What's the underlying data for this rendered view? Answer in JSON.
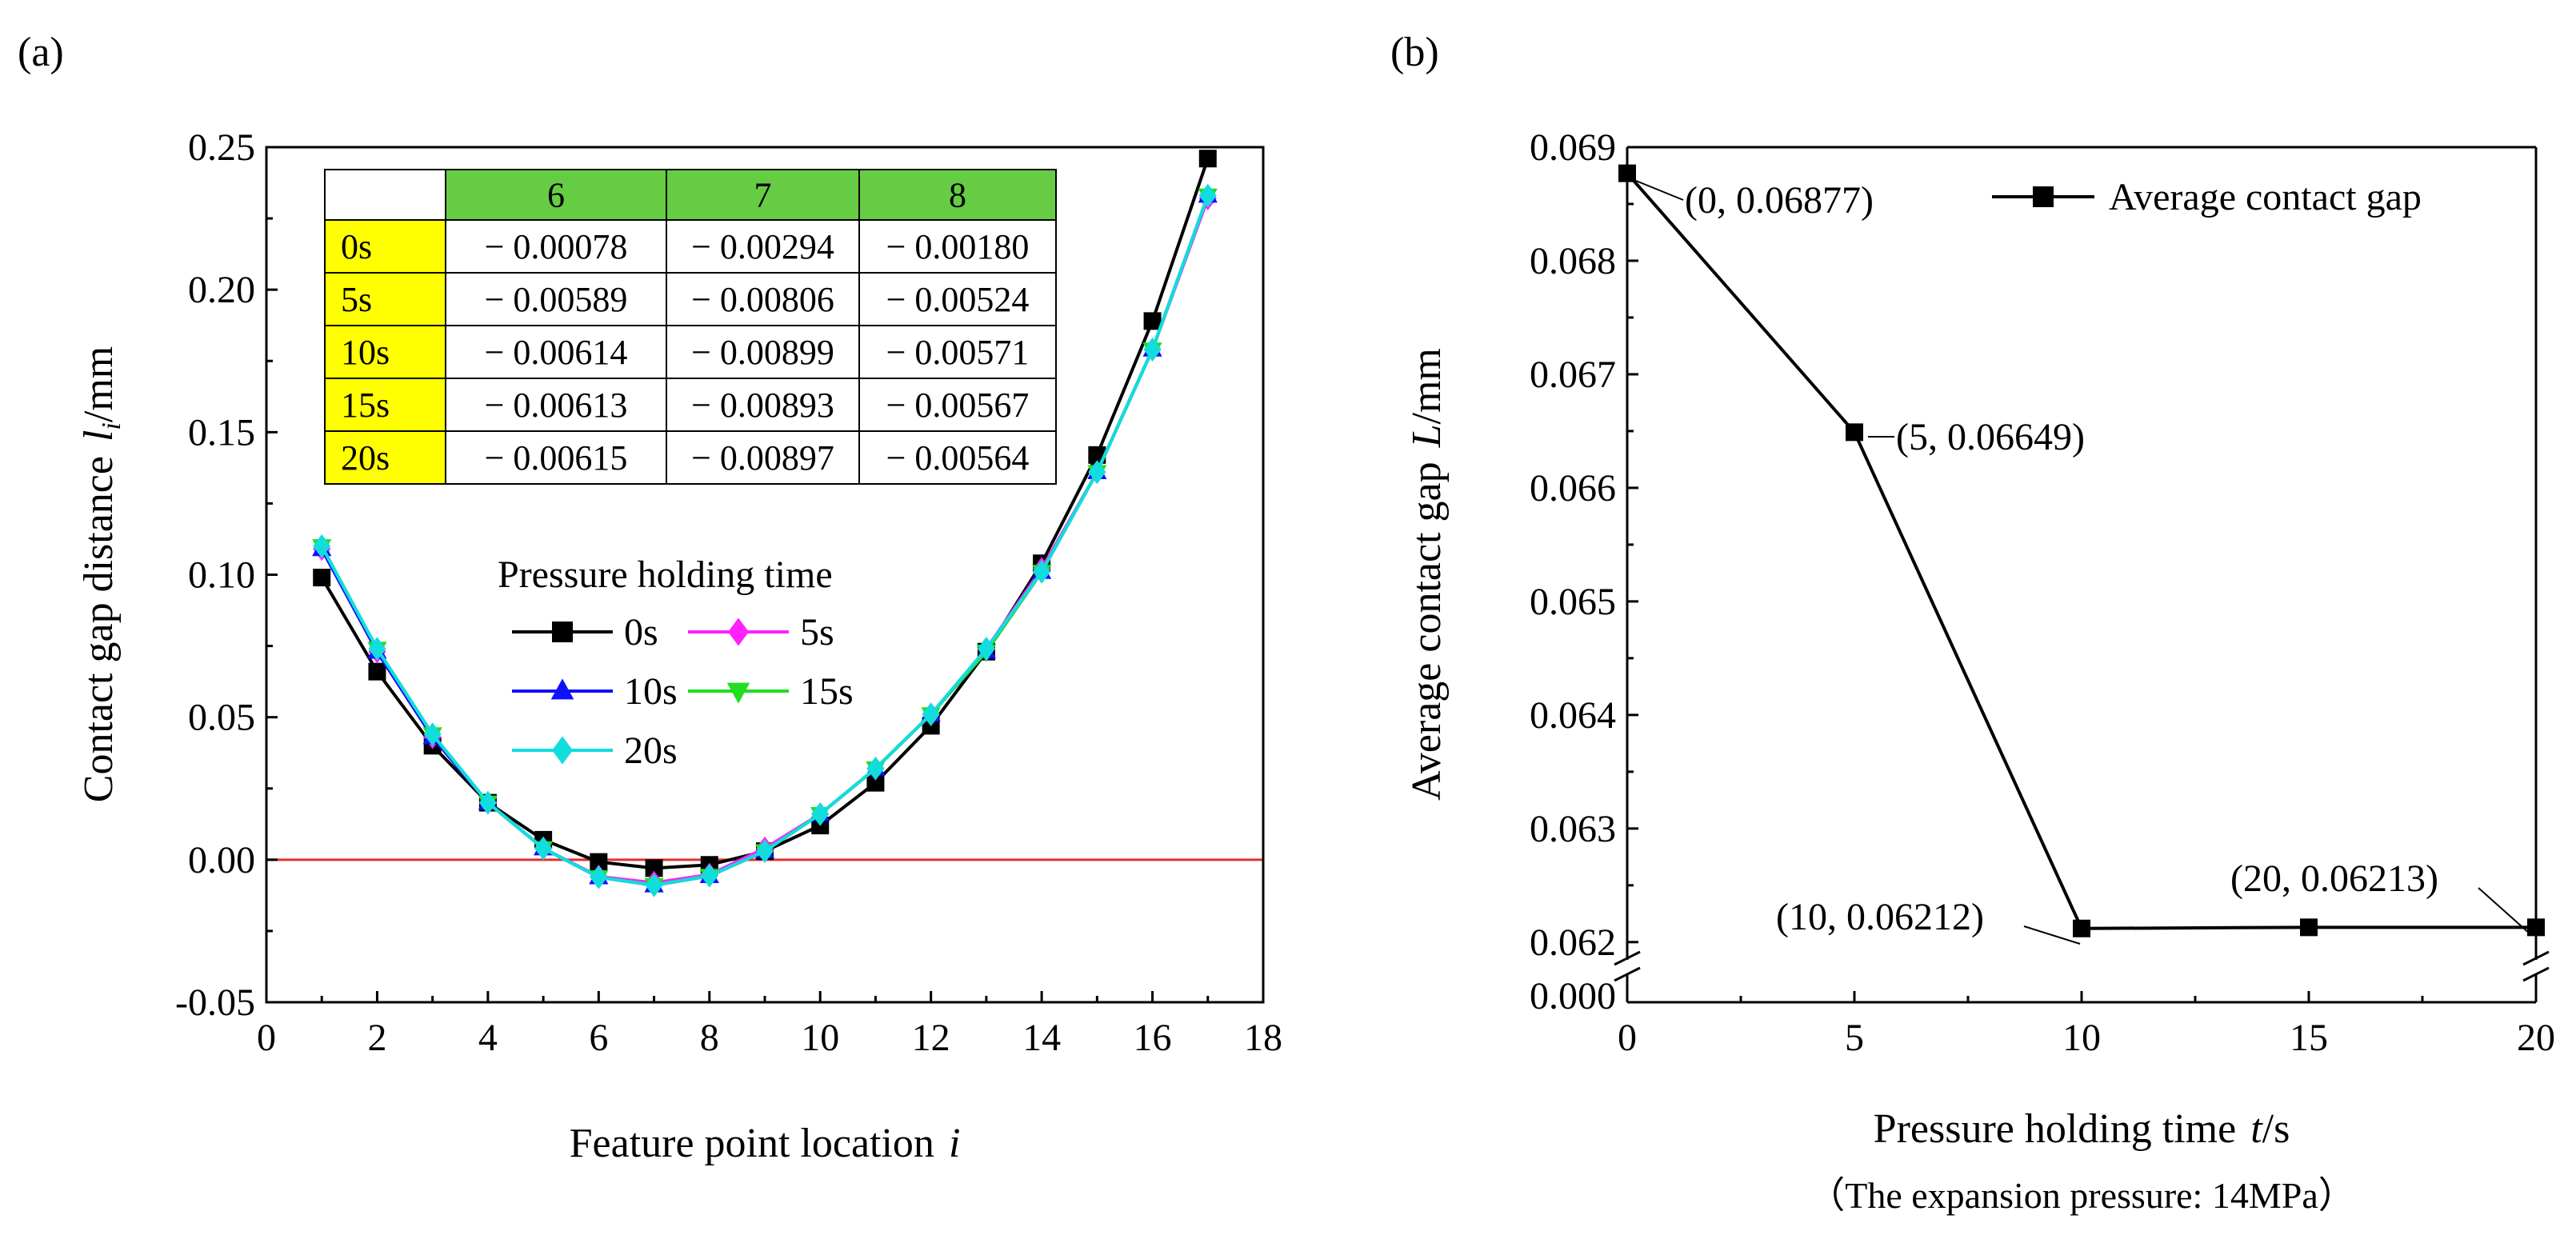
{
  "chart_data": [
    {
      "panel_label": "(a)",
      "type": "line",
      "xlabel_text": "Feature point location",
      "xlabel_var": "i",
      "ylabel_text": "Contact gap distance",
      "ylabel_var": "l",
      "ylabel_sub": "i",
      "ylabel_unit": "/mm",
      "xlim": [
        0,
        18
      ],
      "ylim": [
        -0.05,
        0.25
      ],
      "xticks": [
        0,
        2,
        4,
        6,
        8,
        10,
        12,
        14,
        16,
        18
      ],
      "xtick_labels": [
        "0",
        "2",
        "4",
        "6",
        "8",
        "10",
        "12",
        "14",
        "16",
        "18"
      ],
      "yticks": [
        -0.05,
        0.0,
        0.05,
        0.1,
        0.15,
        0.2,
        0.25
      ],
      "ytick_labels": [
        "-0.05",
        "0.00",
        "0.05",
        "0.10",
        "0.15",
        "0.20",
        "0.25"
      ],
      "reference_line": {
        "y": 0,
        "color": "#e03030"
      },
      "x": [
        1,
        2,
        3,
        4,
        5,
        6,
        7,
        8,
        9,
        10,
        11,
        12,
        13,
        14,
        15,
        16,
        17
      ],
      "series": [
        {
          "name": "0s",
          "color": "#000000",
          "marker": "square",
          "values": [
            0.099,
            0.066,
            0.04,
            0.02,
            0.007,
            -0.00078,
            -0.00294,
            -0.0018,
            0.003,
            0.012,
            0.027,
            0.047,
            0.073,
            0.104,
            0.142,
            0.189,
            0.246
          ]
        },
        {
          "name": "5s",
          "color": "#ff22ff",
          "marker": "diamond",
          "values": [
            0.109,
            0.073,
            0.043,
            0.02,
            0.004,
            -0.00589,
            -0.00806,
            -0.00524,
            0.004,
            0.016,
            0.032,
            0.051,
            0.074,
            0.102,
            0.136,
            0.179,
            0.232
          ]
        },
        {
          "name": "10s",
          "color": "#1010ff",
          "marker": "triangle-up",
          "values": [
            0.109,
            0.073,
            0.043,
            0.02,
            0.004,
            -0.00614,
            -0.00899,
            -0.00571,
            0.003,
            0.016,
            0.032,
            0.051,
            0.073,
            0.101,
            0.136,
            0.179,
            0.233
          ]
        },
        {
          "name": "15s",
          "color": "#22dd22",
          "marker": "triangle-down",
          "values": [
            0.11,
            0.074,
            0.044,
            0.02,
            0.004,
            -0.00613,
            -0.00893,
            -0.00567,
            0.003,
            0.016,
            0.032,
            0.051,
            0.073,
            0.101,
            0.136,
            0.179,
            0.233
          ]
        },
        {
          "name": "20s",
          "color": "#11dddd",
          "marker": "diamond",
          "values": [
            0.11,
            0.074,
            0.044,
            0.02,
            0.004,
            -0.00615,
            -0.00897,
            -0.00564,
            0.003,
            0.016,
            0.032,
            0.051,
            0.074,
            0.101,
            0.136,
            0.179,
            0.233
          ]
        }
      ],
      "legend": {
        "title": "Pressure holding time",
        "placement": "center"
      },
      "inset_table": {
        "type": "table",
        "header": [
          "",
          "6",
          "7",
          "8"
        ],
        "rows": [
          [
            "0s",
            "− 0.00078",
            "− 0.00294",
            "− 0.00180"
          ],
          [
            "5s",
            "− 0.00589",
            "− 0.00806",
            "− 0.00524"
          ],
          [
            "10s",
            "− 0.00614",
            "− 0.00899",
            "− 0.00571"
          ],
          [
            "15s",
            "− 0.00613",
            "− 0.00893",
            "− 0.00567"
          ],
          [
            "20s",
            "− 0.00615",
            "− 0.00897",
            "− 0.00564"
          ]
        ],
        "header_color": "#66cc44",
        "row_label_color": "#ffff00"
      }
    },
    {
      "panel_label": "(b)",
      "type": "line",
      "xlabel_text": "Pressure holding time",
      "xlabel_var": "t",
      "xlabel_unit": "/s",
      "ylabel_text": "Average contact gap",
      "ylabel_var": "L",
      "ylabel_unit": "/mm",
      "caption": "（The expansion pressure: 14MPa）",
      "xlim": [
        0,
        20
      ],
      "ylim_upper": [
        0.0619,
        0.069
      ],
      "ylim_lower": [
        0.0,
        0.0005
      ],
      "axis_break": true,
      "xticks": [
        0,
        5,
        10,
        15,
        20
      ],
      "xtick_labels": [
        "0",
        "5",
        "10",
        "15",
        "20"
      ],
      "yticks": [
        0.062,
        0.063,
        0.064,
        0.065,
        0.066,
        0.067,
        0.068,
        0.069
      ],
      "ytick_labels": [
        "0.062",
        "0.063",
        "0.064",
        "0.065",
        "0.066",
        "0.067",
        "0.068",
        "0.069"
      ],
      "ytick_lower_label": "0.000",
      "x": [
        0,
        5,
        10,
        15,
        20
      ],
      "series": [
        {
          "name": "Average contact gap",
          "color": "#000000",
          "marker": "square",
          "values": [
            0.06877,
            0.06649,
            0.06212,
            0.06213,
            0.06213
          ]
        }
      ],
      "annotations": [
        "(0, 0.06877)",
        "(5, 0.06649)",
        "(10, 0.06212)",
        "(20, 0.06213)"
      ],
      "legend": {
        "placement": "top-right"
      }
    }
  ]
}
